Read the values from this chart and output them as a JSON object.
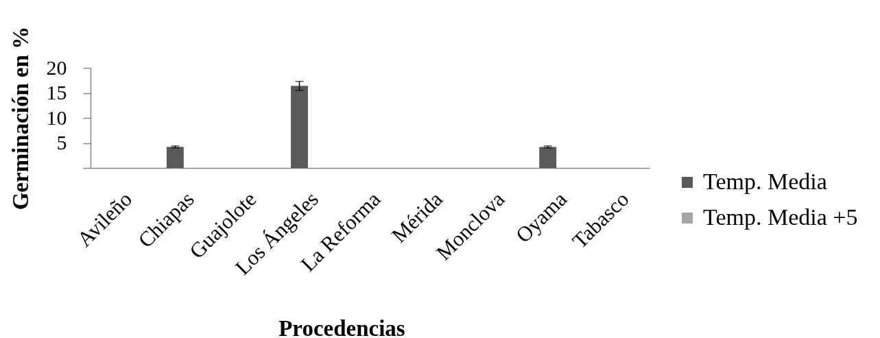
{
  "chart_data": {
    "type": "bar",
    "xlabel": "Procedencias",
    "ylabel": "Germinación en %",
    "categories": [
      "Avileño",
      "Chiapas",
      "Guajolote",
      "Los Ángeles",
      "La Reforma",
      "Mérida",
      "Monclova",
      "Oyama",
      "Tabasco"
    ],
    "series": [
      {
        "name": "Temp. Media",
        "color": "#595959",
        "values": [
          0,
          4.2,
          0,
          16.4,
          0,
          0,
          0,
          4.2,
          0
        ],
        "errors": [
          null,
          0.2,
          null,
          0.9,
          null,
          null,
          null,
          0.2,
          null
        ]
      },
      {
        "name": "Temp. Media +5",
        "color": "#a6a6a6",
        "values": [
          0,
          0,
          0,
          0,
          0,
          0,
          0,
          0,
          0
        ]
      }
    ],
    "ylim": [
      0,
      20
    ],
    "yticks": [
      {
        "value": 0,
        "label": null
      },
      5,
      10,
      15,
      20
    ],
    "grid": false,
    "legend": "right"
  }
}
